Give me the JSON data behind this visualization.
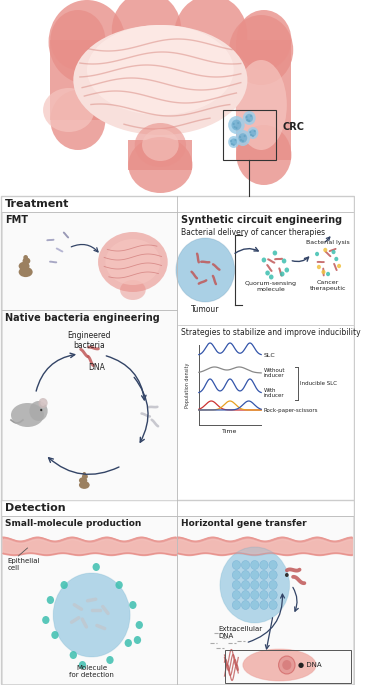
{
  "bg_color": "#ffffff",
  "treatment_label": "Treatment",
  "detection_label": "Detection",
  "fmt_label": "FMT",
  "native_label": "Native bacteria engineering",
  "synthetic_label": "Synthetic circuit engineering",
  "bacterial_delivery": "Bacterial delivery of cancer therapies",
  "strategies_label": "Strategies to stabilize and improve inducibility",
  "small_mol_label": "Small-molecule production",
  "horizontal_label": "Horizontal gene transfer",
  "crc_label": "CRC",
  "tumour_label": "Tumour",
  "quorum_label": "Quorum-sensing\nmolecule",
  "bacterial_lysis": "Bacterial lysis",
  "cancer_therapeutic": "Cancer\ntherapeutic",
  "engineered_bacteria": "Engineered\nbacteria",
  "dna_label": "DNA",
  "epithelial_label": "Epithelial\ncell",
  "molecule_label": "Molecule\nfor detection",
  "extracellular_label": "Extracellular\nDNA",
  "dna2_label": "● DNA",
  "slc_label": "SLC",
  "without_inducer": "Without\ninducer",
  "with_inducer": "With\ninducer",
  "inducible_slc": "Inducible SLC",
  "rock_paper": "Rock-paper-scissors",
  "time_label": "Time",
  "pop_density": "Population density",
  "pink_colon": "#e8908a",
  "pink_light": "#f5c5bf",
  "pink_medium": "#e8908a",
  "pink_dark": "#c05858",
  "pink_inner": "#f8e0dc",
  "blue_light": "#b8dded",
  "blue_tumor": "#9ecde8",
  "blue_hex": "#7abcd8",
  "teal": "#3dbfaf",
  "teal_dark": "#2aaa9a",
  "yellow_dot": "#f0c040",
  "gray_mouse": "#aaaaaa",
  "gray_bacteria": "#c8c8c8",
  "dark_navy": "#334466",
  "border_color": "#cccccc",
  "text_dark": "#222222",
  "section_line": "#bbbbbb",
  "poop_color": "#9b8060"
}
